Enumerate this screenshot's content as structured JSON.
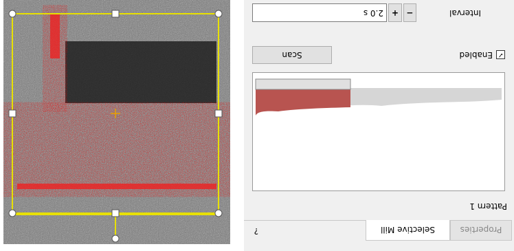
{
  "tabs": [
    "Properties",
    "Selective Mill"
  ],
  "help": "?",
  "pattern": "Pattern 1",
  "enabled": "Enabled",
  "scan": "Scan",
  "interval": {
    "label": "Interval",
    "value": "2.0 s",
    "minus": "−",
    "plus": "+"
  }
}
